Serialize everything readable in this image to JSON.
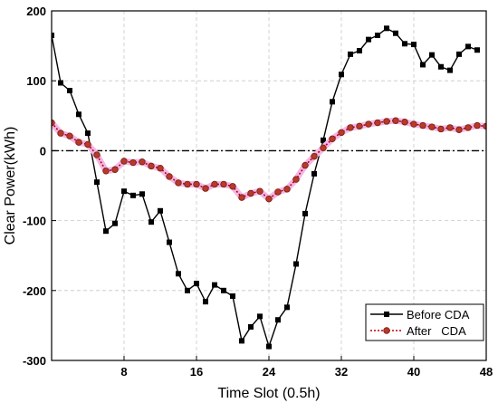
{
  "chart_data": {
    "type": "line",
    "title": "",
    "xlabel": "Time Slot (0.5h)",
    "ylabel": "Clear Power(kWh)",
    "xlim": [
      0,
      48
    ],
    "ylim": [
      -300,
      200
    ],
    "xticks": [
      8,
      16,
      24,
      32,
      40,
      48
    ],
    "yticks": [
      200,
      100,
      0,
      -100,
      -200,
      -300
    ],
    "grid": true,
    "legend_position": "bottom-right",
    "reference_line": 0,
    "x": [
      0,
      1,
      2,
      3,
      4,
      5,
      6,
      7,
      8,
      9,
      10,
      11,
      12,
      13,
      14,
      15,
      16,
      17,
      18,
      19,
      20,
      21,
      22,
      23,
      24,
      25,
      26,
      27,
      28,
      29,
      30,
      31,
      32,
      33,
      34,
      35,
      36,
      37,
      38,
      39,
      40,
      41,
      42,
      43,
      44,
      45,
      46,
      47,
      48
    ],
    "series": [
      {
        "name": "Before CDA",
        "color": "#000000",
        "marker": "square",
        "values": [
          165,
          97,
          86,
          52,
          25,
          -45,
          -115,
          -104,
          -58,
          -64,
          -62,
          -102,
          -86,
          -131,
          -176,
          -200,
          -190,
          -216,
          -192,
          -200,
          -208,
          -272,
          -252,
          -237,
          -280,
          -242,
          -224,
          -162,
          -90,
          -33,
          15,
          70,
          109,
          138,
          143,
          159,
          165,
          175,
          168,
          153,
          152,
          123,
          137,
          120,
          115,
          138,
          149,
          144,
          null
        ]
      },
      {
        "name": "After   CDA",
        "color": "#c00000",
        "marker": "circle",
        "values": [
          40,
          25,
          21,
          12,
          9,
          -6,
          -29,
          -27,
          -15,
          -17,
          -16,
          -22,
          -25,
          -37,
          -46,
          -48,
          -48,
          -54,
          -48,
          -48,
          -51,
          -67,
          -61,
          -58,
          -69,
          -59,
          -55,
          -41,
          -21,
          -8,
          4,
          17,
          26,
          33,
          35,
          38,
          40,
          42,
          43,
          41,
          38,
          36,
          34,
          31,
          33,
          30,
          33,
          36,
          35
        ]
      }
    ]
  }
}
